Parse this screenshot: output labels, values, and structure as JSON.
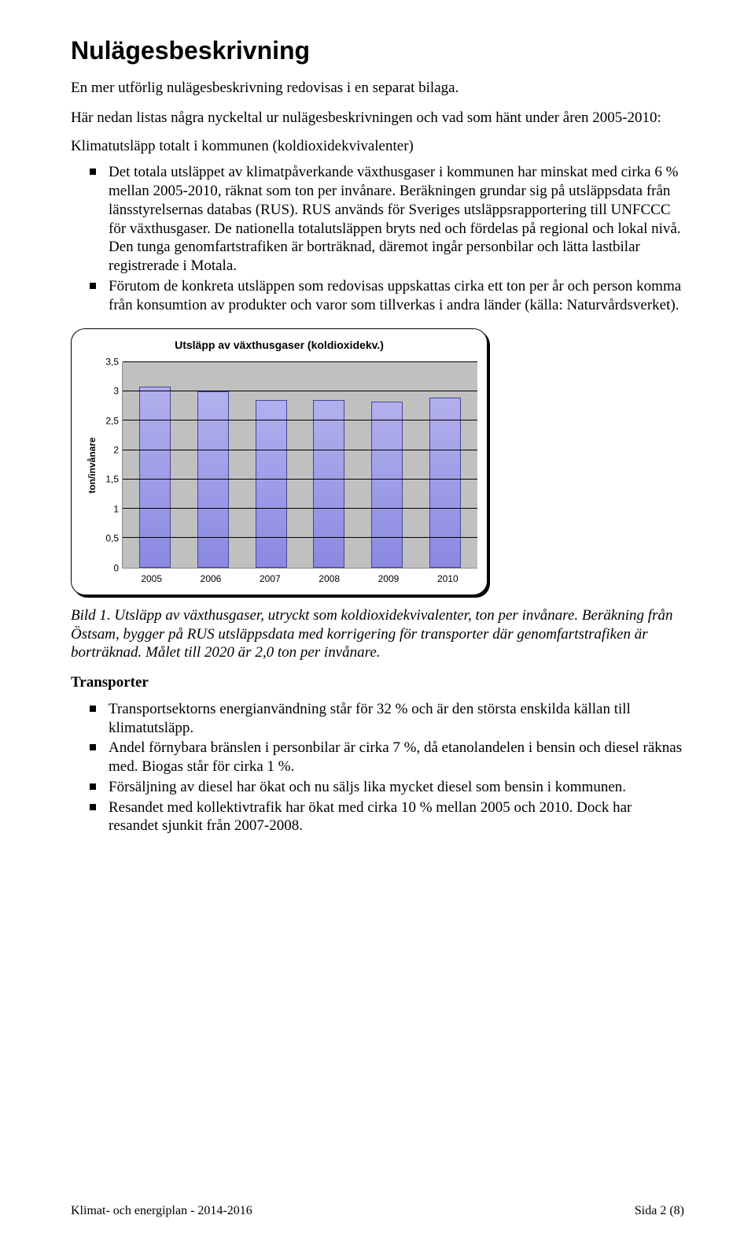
{
  "title": "Nulägesbeskrivning",
  "intro": "En mer utförlig nulägesbeskrivning redovisas i en separat bilaga.",
  "lead": "Här nedan listas några nyckeltal ur nulägesbeskrivningen och vad som hänt under åren 2005-2010:",
  "subhead": "Klimatutsläpp totalt i kommunen (koldioxidekvivalenter)",
  "bullets1": [
    "Det totala utsläppet av klimatpåverkande växthusgaser i kommunen har minskat med cirka 6 % mellan 2005-2010, räknat som ton per invånare. Beräkningen grundar sig på utsläppsdata från länsstyrelsernas databas (RUS). RUS används för Sveriges utsläppsrapportering till UNFCCC för växthusgaser. De nationella totalutsläppen bryts ned och fördelas på regional och lokal nivå. Den tunga genomfartstrafiken är borträknad, däremot ingår personbilar och lätta lastbilar registrerade i Motala.",
    "Förutom de konkreta utsläppen som redovisas uppskattas cirka ett ton per år och person komma från konsumtion av produkter och varor som tillverkas i andra länder (källa: Naturvårdsverket)."
  ],
  "chart": {
    "title": "Utsläpp av växthusgaser (koldioxidekv.)",
    "ylabel": "ton/invånare",
    "ymax": 3.5,
    "ystep": 0.5,
    "yticks": [
      "0",
      "0,5",
      "1",
      "1,5",
      "2",
      "2,5",
      "3",
      "3,5"
    ],
    "categories": [
      "2005",
      "2006",
      "2007",
      "2008",
      "2009",
      "2010"
    ],
    "values": [
      3.08,
      3.0,
      2.85,
      2.85,
      2.82,
      2.9
    ],
    "plot_bg": "#c0c0c0",
    "bar_fill": "#9b99e6",
    "bar_border": "#46449c",
    "grid_color": "#000000"
  },
  "caption": "Bild 1. Utsläpp av växthusgaser, utryckt som koldioxidekvivalenter, ton per invånare. Beräkning från Östsam, bygger på RUS utsläppsdata med korrigering för transporter där genomfartstrafiken är borträknad. Målet till 2020 är 2,0 ton per invånare.",
  "section2_title": "Transporter",
  "bullets2": [
    "Transportsektorns energianvändning står för 32 % och är den största enskilda källan till klimatutsläpp.",
    "Andel förnybara bränslen i personbilar är cirka 7 %, då etanolandelen i bensin och diesel räknas med. Biogas står för cirka 1 %.",
    "Försäljning av diesel har ökat och nu säljs lika mycket diesel som bensin i kommunen.",
    "Resandet med kollektivtrafik har ökat med cirka 10 % mellan 2005 och 2010. Dock har resandet sjunkit från 2007-2008."
  ],
  "footer": {
    "left": "Klimat- och energiplan - 2014-2016",
    "right": "Sida 2 (8)"
  }
}
